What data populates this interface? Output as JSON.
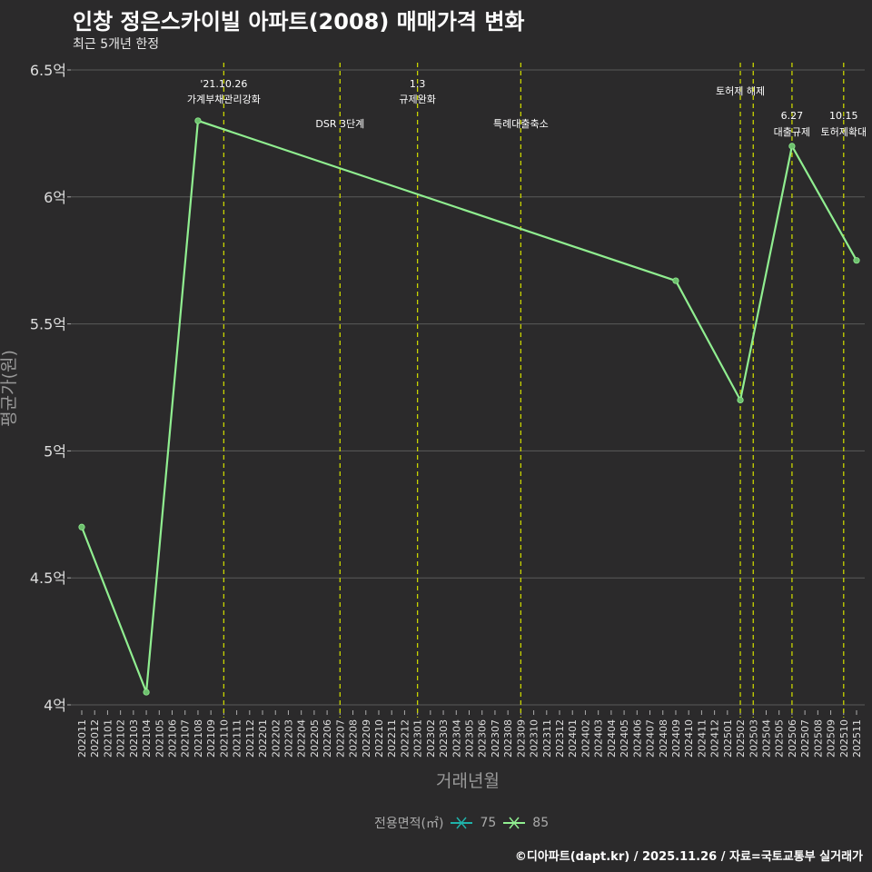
{
  "title": "인창 정은스카이빌 아파트(2008) 매매가격 변화",
  "subtitle": "최근 5개년 한정",
  "caption": "©디아파트(dapt.kr) / 2025.11.26 / 자료=국토교통부 실거래가",
  "colors": {
    "background": "#2b2a2b",
    "grid": "#5a5a5a",
    "line85": "#90ee90",
    "line75": "#20b2aa",
    "event": "#c8d400"
  },
  "chart_data": {
    "type": "line",
    "title": "인창 정은스카이빌 아파트(2008) 매매가격 변화",
    "xlabel": "거래년월",
    "ylabel": "평균가(원)",
    "ylim": [
      4,
      6.5
    ],
    "yticks": [
      {
        "v": 4,
        "label": "4억"
      },
      {
        "v": 4.5,
        "label": "4.5억"
      },
      {
        "v": 5,
        "label": "5억"
      },
      {
        "v": 5.5,
        "label": "5.5억"
      },
      {
        "v": 6,
        "label": "6억"
      },
      {
        "v": 6.5,
        "label": "6.5억"
      }
    ],
    "categories": [
      "202011",
      "202012",
      "202101",
      "202102",
      "202103",
      "202104",
      "202105",
      "202106",
      "202107",
      "202108",
      "202109",
      "202110",
      "202111",
      "202112",
      "202201",
      "202202",
      "202203",
      "202204",
      "202205",
      "202206",
      "202207",
      "202208",
      "202209",
      "202210",
      "202211",
      "202212",
      "202301",
      "202302",
      "202303",
      "202304",
      "202305",
      "202306",
      "202307",
      "202308",
      "202309",
      "202310",
      "202311",
      "202312",
      "202401",
      "202402",
      "202403",
      "202404",
      "202405",
      "202406",
      "202407",
      "202408",
      "202409",
      "202410",
      "202411",
      "202412",
      "202501",
      "202502",
      "202503",
      "202504",
      "202505",
      "202506",
      "202507",
      "202508",
      "202509",
      "202510",
      "202511"
    ],
    "series": [
      {
        "name": "85",
        "points": [
          {
            "x": "202011",
            "y": 4.7
          },
          {
            "x": "202104",
            "y": 4.05
          },
          {
            "x": "202108",
            "y": 6.3
          },
          {
            "x": "202409",
            "y": 5.67
          },
          {
            "x": "202502",
            "y": 5.2
          },
          {
            "x": "202506",
            "y": 6.2
          },
          {
            "x": "202511",
            "y": 5.75
          }
        ]
      }
    ],
    "events": [
      {
        "x": "202110",
        "lines": [
          "'21.10.26",
          "가계부채관리강화"
        ],
        "row": "top"
      },
      {
        "x": "202207",
        "lines": [
          "DSR 3단계"
        ],
        "row": "low"
      },
      {
        "x": "202301",
        "lines": [
          "1.3",
          "규제완화"
        ],
        "row": "top"
      },
      {
        "x": "202309",
        "lines": [
          "특례대출축소"
        ],
        "row": "low"
      },
      {
        "x": "202502",
        "lines": [
          "토허제 해제"
        ],
        "row": "mid"
      },
      {
        "x": "202503",
        "lines": [],
        "row": "none"
      },
      {
        "x": "202506",
        "lines": [
          "6.27",
          "대출규제"
        ],
        "row": "bottom"
      },
      {
        "x": "202510",
        "lines": [
          "10.15",
          "토허제확대"
        ],
        "row": "bottom"
      }
    ],
    "legend": {
      "title": "전용면적(㎡)",
      "items": [
        "75",
        "85"
      ],
      "position": "bottom"
    }
  }
}
